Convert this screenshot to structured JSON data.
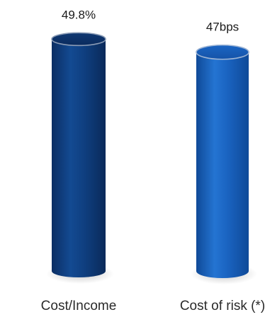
{
  "chart_data": {
    "type": "bar",
    "style": "3d-cylinder",
    "categories": [
      "Cost/Income",
      "Cost of risk (*)"
    ],
    "data_labels": [
      "49.8%",
      "47bps"
    ],
    "values": [
      49.8,
      47
    ],
    "units": [
      "%",
      "bps"
    ],
    "colors": [
      "#0d3d80",
      "#1a63c0"
    ],
    "grid": false,
    "legend": "none"
  }
}
